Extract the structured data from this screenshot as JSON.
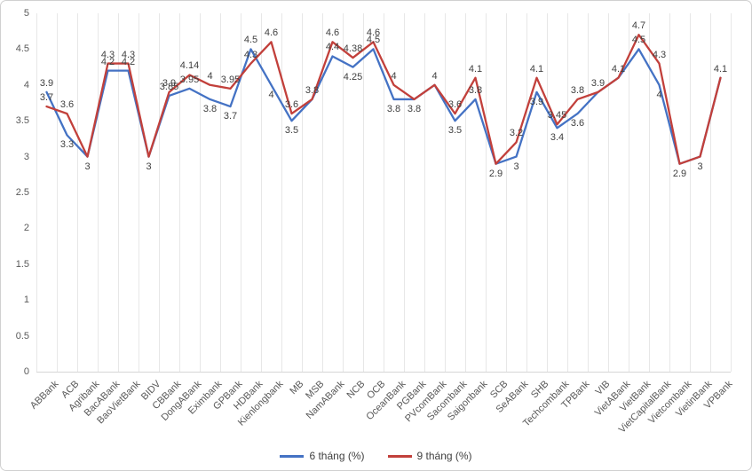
{
  "chart_data": {
    "type": "line",
    "title": "",
    "categories": [
      "ABBank",
      "ACB",
      "Agribank",
      "BacABank",
      "BaoVietBank",
      "BIDV",
      "CBBank",
      "DongABank",
      "Eximbank",
      "GPBank",
      "HDBank",
      "Kienlongbank",
      "MB",
      "MSB",
      "NamABank",
      "NCB",
      "OCB",
      "OceanBank",
      "PGBank",
      "PVcomBank",
      "Sacombank",
      "Saigonbank",
      "SCB",
      "SeABank",
      "SHB",
      "Techcombank",
      "TPBank",
      "VIB",
      "VietABank",
      "VietBank",
      "VietCapitalBank",
      "Vietcombank",
      "VietinBank",
      "VPBank"
    ],
    "series": [
      {
        "name": "6 tháng (%)",
        "color": "#4472C4",
        "values": [
          3.9,
          3.3,
          3,
          4.2,
          4.2,
          3,
          3.85,
          3.95,
          3.8,
          3.7,
          4.5,
          4,
          3.5,
          3.8,
          4.4,
          4.25,
          4.5,
          3.8,
          3.8,
          4,
          3.5,
          3.8,
          2.9,
          3,
          3.9,
          3.4,
          3.6,
          3.9,
          4.1,
          4.5,
          4,
          2.9,
          3,
          4.1
        ]
      },
      {
        "name": "9 tháng (%)",
        "color": "#C2403B",
        "values": [
          3.7,
          3.6,
          3,
          4.3,
          4.3,
          3,
          3.9,
          4.14,
          4,
          3.95,
          4.3,
          4.6,
          3.6,
          3.8,
          4.6,
          4.38,
          4.6,
          4,
          3.8,
          4,
          3.6,
          4.1,
          2.9,
          3.2,
          4.1,
          3.45,
          3.8,
          3.9,
          4.1,
          4.7,
          4.3,
          2.9,
          3,
          4.1
        ]
      }
    ],
    "ylim": [
      0,
      5
    ],
    "ytick_step": 0.5,
    "yticks": [
      "0",
      "0.5",
      "1",
      "1.5",
      "2",
      "2.5",
      "3",
      "3.5",
      "4",
      "4.5",
      "5"
    ],
    "xlabel": "",
    "ylabel": "",
    "grid": "vertical-only",
    "legend_position": "bottom-center",
    "colors": {
      "grid": "#e7e7e7",
      "axis_text": "#595959",
      "data_label_text": "#404040",
      "series_6m": "#4472C4",
      "series_9m": "#C2403B"
    }
  },
  "legend": {
    "items": [
      {
        "label": "6 tháng (%)",
        "color": "#4472C4"
      },
      {
        "label": "9 tháng (%)",
        "color": "#C2403B"
      }
    ]
  }
}
